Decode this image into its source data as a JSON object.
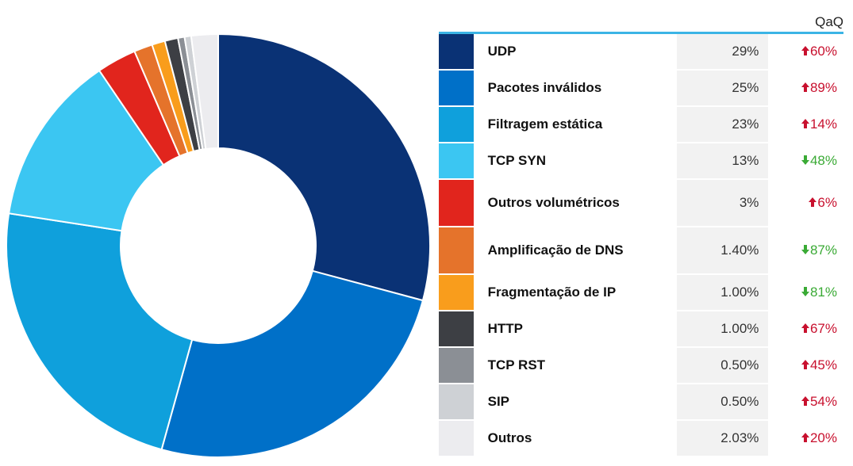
{
  "chart_data": {
    "type": "pie",
    "donut": true,
    "categories": [
      "UDP",
      "Pacotes inválidos",
      "Filtragem estática",
      "TCP SYN",
      "Outros volumétricos",
      "Amplificação de DNS",
      "Fragmentação de IP",
      "HTTP",
      "TCP RST",
      "SIP",
      "Outros"
    ],
    "values": [
      29,
      25,
      23,
      13,
      3,
      1.4,
      1.0,
      1.0,
      0.5,
      0.5,
      2.03
    ],
    "value_labels": [
      "29%",
      "25%",
      "23%",
      "13%",
      "3%",
      "1.40%",
      "1.00%",
      "1.00%",
      "0.50%",
      "0.50%",
      "2.03%"
    ],
    "colors": [
      "#0a3275",
      "#0070c8",
      "#0fa0dc",
      "#3bc6f2",
      "#e1251d",
      "#e5732b",
      "#f99d1c",
      "#3d3f44",
      "#8b8f95",
      "#ced1d5",
      "#ececef"
    ],
    "qoq_header": "QaQ",
    "qoq": [
      "60%",
      "89%",
      "14%",
      "48%",
      "6%",
      "87%",
      "81%",
      "67%",
      "45%",
      "54%",
      "20%"
    ],
    "qoq_direction": [
      "up",
      "up",
      "up",
      "down",
      "up",
      "down",
      "down",
      "up",
      "up",
      "up",
      "up"
    ],
    "up_color": "#c8102e",
    "down_color": "#3aaa35"
  }
}
